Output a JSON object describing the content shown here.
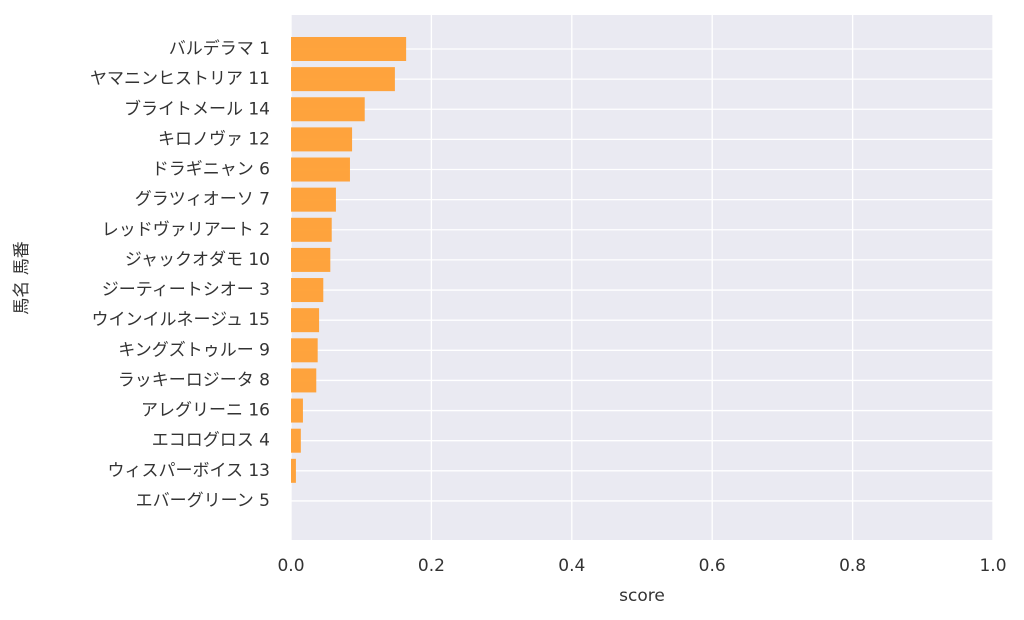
{
  "chart_data": {
    "type": "bar",
    "orientation": "horizontal",
    "categories": [
      "バルデラマ 1",
      "ヤマニンヒストリア 11",
      "ブライトメール 14",
      "キロノヴァ 12",
      "ドラギニャン 6",
      "グラツィオーソ 7",
      "レッドヴァリアート 2",
      "ジャックオダモ 10",
      "ジーティートシオー 3",
      "ウインイルネージュ 15",
      "キングズトゥルー 9",
      "ラッキーロジータ 8",
      "アレグリーニ 16",
      "エコログロス 4",
      "ウィスパーボイス 13",
      "エバーグリーン 5"
    ],
    "values": [
      0.164,
      0.148,
      0.105,
      0.087,
      0.084,
      0.064,
      0.058,
      0.056,
      0.046,
      0.04,
      0.038,
      0.036,
      0.017,
      0.014,
      0.007,
      0
    ],
    "color": "#ff9f33",
    "xlabel": "score",
    "ylabel": "馬名 馬番",
    "xlim": [
      0,
      1
    ],
    "xticks": [
      {
        "value": 0,
        "label": "0.0"
      },
      0.2,
      0.4,
      0.6,
      0.8,
      {
        "value": 1,
        "label": "1.0"
      }
    ],
    "grid": true
  }
}
